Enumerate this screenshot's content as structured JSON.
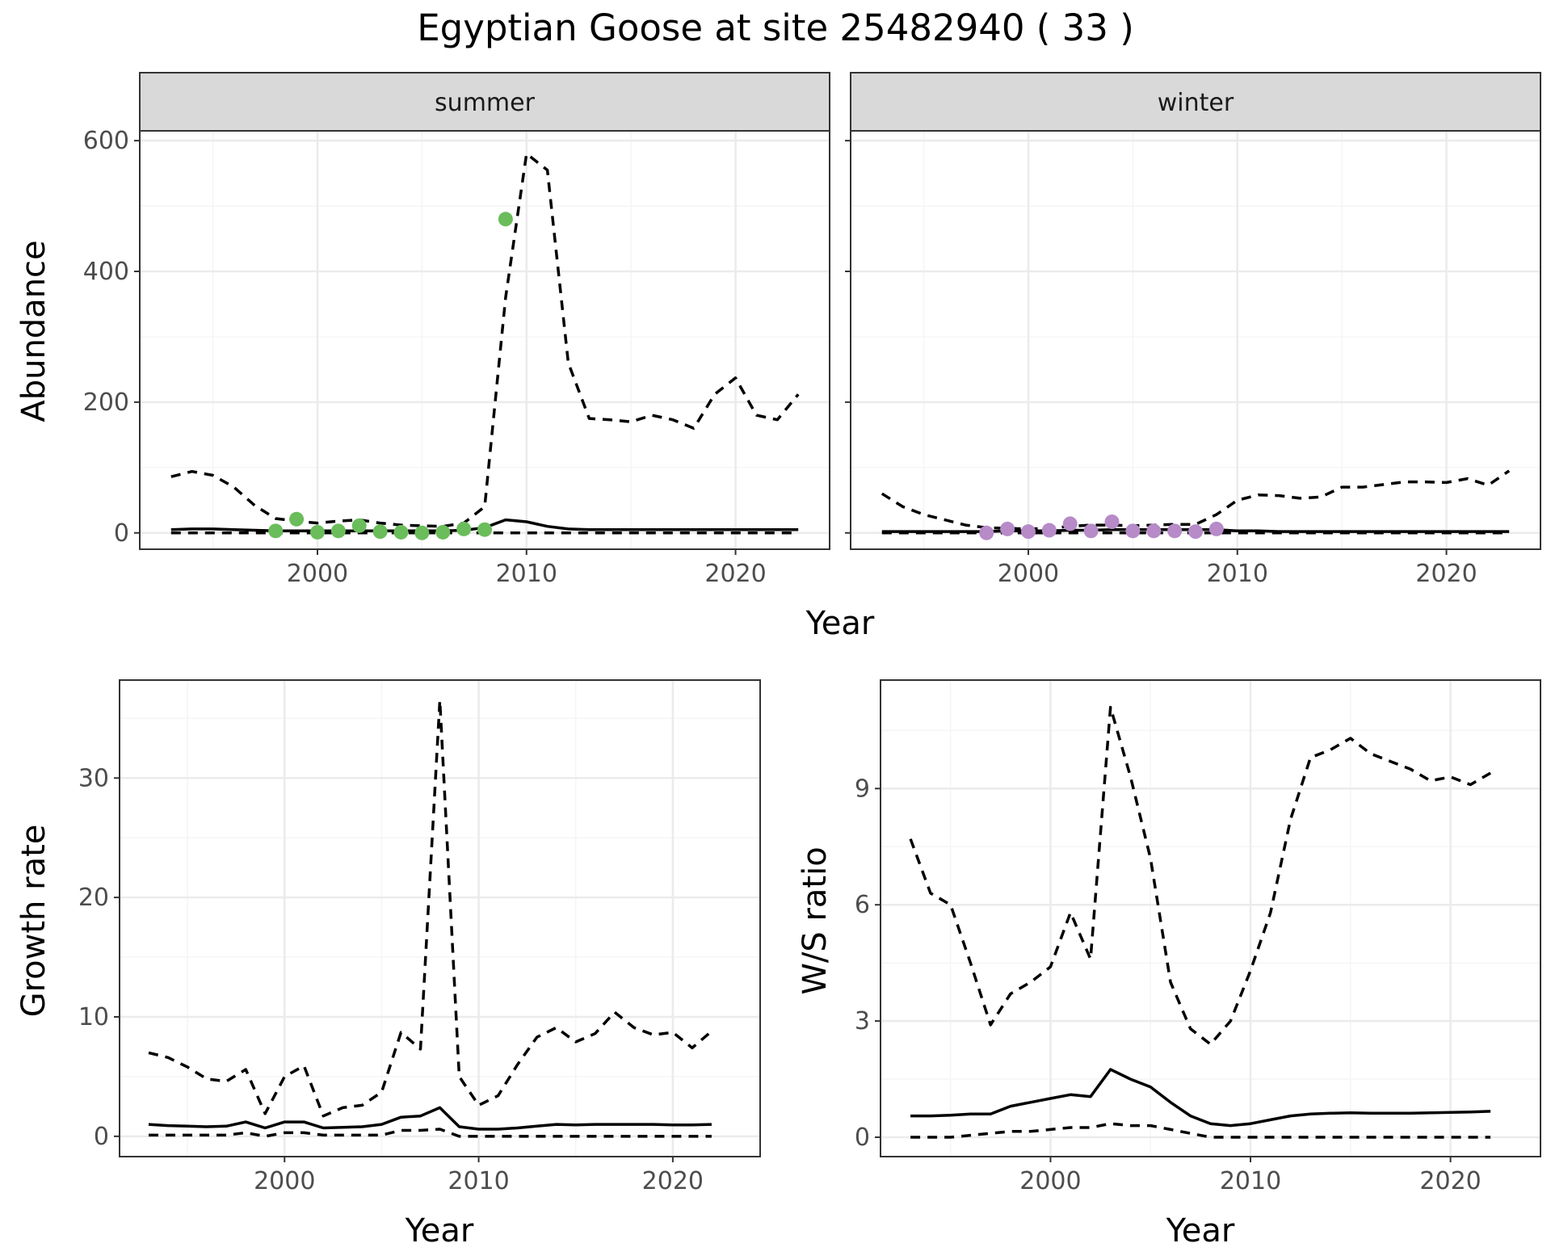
{
  "figure": {
    "title": "Egyptian Goose at site 25482940 ( 33 )",
    "colors": {
      "summer_points": "#6abd5a",
      "winter_points": "#b78ac8",
      "line": "#000000",
      "grid_major": "#ebebeb",
      "grid_minor": "#f5f5f5",
      "strip_fill": "#d9d9d9"
    }
  },
  "chart_data": [
    {
      "id": "abundance",
      "type": "line",
      "facets": [
        "summer",
        "winter"
      ],
      "xlabel": "Year",
      "ylabel": "Abundance",
      "xlim": [
        1991.5,
        2024.5
      ],
      "ylim": [
        -25,
        615
      ],
      "xticks": [
        2000,
        2010,
        2020
      ],
      "yticks": [
        0,
        200,
        400,
        600
      ],
      "grid": true,
      "panels": [
        {
          "facet": "summer",
          "series": [
            {
              "style": "dashed",
              "x": [
                1993,
                1994,
                1995,
                1996,
                1997,
                1998,
                1999,
                2000,
                2001,
                2002,
                2003,
                2004,
                2005,
                2006,
                2007,
                2008,
                2009,
                2010,
                2011,
                2012,
                2013,
                2014,
                2015,
                2016,
                2017,
                2018,
                2019,
                2020,
                2021,
                2022,
                2023
              ],
              "values": [
                86,
                94,
                88,
                70,
                42,
                22,
                18,
                15,
                18,
                20,
                15,
                12,
                11,
                10,
                15,
                40,
                360,
                580,
                555,
                260,
                175,
                173,
                170,
                180,
                173,
                160,
                212,
                237,
                180,
                173,
                212
              ]
            },
            {
              "style": "solid",
              "x": [
                1993,
                1994,
                1995,
                1996,
                1997,
                1998,
                1999,
                2000,
                2001,
                2002,
                2003,
                2004,
                2005,
                2006,
                2007,
                2008,
                2009,
                2010,
                2011,
                2012,
                2013,
                2014,
                2015,
                2016,
                2017,
                2018,
                2019,
                2020,
                2021,
                2022,
                2023
              ],
              "values": [
                5,
                6,
                6,
                5,
                4,
                3,
                3,
                3,
                3,
                3,
                3,
                3,
                3,
                3,
                4,
                8,
                20,
                17,
                10,
                6,
                5,
                5,
                5,
                5,
                5,
                5,
                5,
                5,
                5,
                5,
                5
              ]
            },
            {
              "style": "dashed",
              "x": [
                1993,
                1994,
                1995,
                1996,
                1997,
                1998,
                1999,
                2000,
                2001,
                2002,
                2003,
                2004,
                2005,
                2006,
                2007,
                2008,
                2009,
                2010,
                2011,
                2012,
                2013,
                2014,
                2015,
                2016,
                2017,
                2018,
                2019,
                2020,
                2021,
                2022,
                2023
              ],
              "values": [
                0,
                0,
                0,
                0,
                0,
                0,
                0,
                0,
                0,
                0,
                0,
                0,
                0,
                0,
                0,
                0,
                0,
                0,
                0,
                0,
                0,
                0,
                0,
                0,
                0,
                0,
                0,
                0,
                0,
                0,
                0
              ]
            }
          ],
          "points": {
            "x": [
              1998,
              1999,
              2000,
              2001,
              2002,
              2003,
              2004,
              2005,
              2006,
              2007,
              2008,
              2009
            ],
            "values": [
              3,
              21,
              1,
              3,
              11,
              2,
              1,
              0,
              1,
              6,
              5,
              480
            ]
          }
        },
        {
          "facet": "winter",
          "series": [
            {
              "style": "dashed",
              "x": [
                1993,
                1994,
                1995,
                1996,
                1997,
                1998,
                1999,
                2000,
                2001,
                2002,
                2003,
                2004,
                2005,
                2006,
                2007,
                2008,
                2009,
                2010,
                2011,
                2012,
                2013,
                2014,
                2015,
                2016,
                2017,
                2018,
                2019,
                2020,
                2021,
                2022,
                2023
              ],
              "values": [
                60,
                40,
                28,
                20,
                12,
                8,
                7,
                6,
                7,
                10,
                12,
                12,
                11,
                12,
                13,
                13,
                28,
                50,
                58,
                57,
                53,
                55,
                70,
                70,
                74,
                78,
                78,
                77,
                83,
                73,
                95
              ]
            },
            {
              "style": "solid",
              "x": [
                1993,
                1994,
                1995,
                1996,
                1997,
                1998,
                1999,
                2000,
                2001,
                2002,
                2003,
                2004,
                2005,
                2006,
                2007,
                2008,
                2009,
                2010,
                2011,
                2012,
                2013,
                2014,
                2015,
                2016,
                2017,
                2018,
                2019,
                2020,
                2021,
                2022,
                2023
              ],
              "values": [
                2,
                2,
                2,
                2,
                2,
                2,
                3,
                3,
                3,
                4,
                4,
                5,
                5,
                5,
                5,
                5,
                5,
                3,
                3,
                2,
                2,
                2,
                2,
                2,
                2,
                2,
                2,
                2,
                2,
                2,
                2
              ]
            },
            {
              "style": "dashed",
              "x": [
                1993,
                1994,
                1995,
                1996,
                1997,
                1998,
                1999,
                2000,
                2001,
                2002,
                2003,
                2004,
                2005,
                2006,
                2007,
                2008,
                2009,
                2010,
                2011,
                2012,
                2013,
                2014,
                2015,
                2016,
                2017,
                2018,
                2019,
                2020,
                2021,
                2022,
                2023
              ],
              "values": [
                0,
                0,
                0,
                0,
                0,
                0,
                0,
                0,
                0,
                0,
                0,
                0,
                0,
                0,
                0,
                0,
                0,
                0,
                0,
                0,
                0,
                0,
                0,
                0,
                0,
                0,
                0,
                0,
                0,
                0,
                0
              ]
            }
          ],
          "points": {
            "x": [
              1998,
              1999,
              2000,
              2001,
              2002,
              2003,
              2004,
              2005,
              2006,
              2007,
              2008,
              2009
            ],
            "values": [
              0,
              6,
              2,
              4,
              14,
              3,
              17,
              3,
              3,
              3,
              2,
              6
            ]
          }
        }
      ]
    },
    {
      "id": "growth",
      "type": "line",
      "xlabel": "Year",
      "ylabel": "Growth rate",
      "xlim": [
        1991.5,
        2024.5
      ],
      "ylim": [
        -1.7,
        38.2
      ],
      "xticks": [
        2000,
        2010,
        2020
      ],
      "yticks": [
        0,
        10,
        20,
        30
      ],
      "grid": true,
      "series": [
        {
          "style": "dashed",
          "x": [
            1993,
            1994,
            1995,
            1996,
            1997,
            1998,
            1999,
            2000,
            2001,
            2002,
            2003,
            2004,
            2005,
            2006,
            2007,
            2008,
            2009,
            2010,
            2011,
            2012,
            2013,
            2014,
            2015,
            2016,
            2017,
            2018,
            2019,
            2020,
            2021,
            2022
          ],
          "values": [
            7.0,
            6.6,
            5.8,
            4.8,
            4.6,
            5.6,
            1.9,
            5.0,
            5.9,
            1.7,
            2.4,
            2.6,
            3.7,
            8.7,
            7.3,
            36.5,
            5.0,
            2.6,
            3.4,
            6.0,
            8.3,
            9.1,
            7.9,
            8.6,
            10.4,
            9.1,
            8.5,
            8.7,
            7.4,
            8.8
          ]
        },
        {
          "style": "solid",
          "x": [
            1993,
            1994,
            1995,
            1996,
            1997,
            1998,
            1999,
            2000,
            2001,
            2002,
            2003,
            2004,
            2005,
            2006,
            2007,
            2008,
            2009,
            2010,
            2011,
            2012,
            2013,
            2014,
            2015,
            2016,
            2017,
            2018,
            2019,
            2020,
            2021,
            2022
          ],
          "values": [
            1.0,
            0.9,
            0.85,
            0.8,
            0.85,
            1.2,
            0.7,
            1.2,
            1.2,
            0.7,
            0.75,
            0.8,
            1.0,
            1.6,
            1.7,
            2.4,
            0.8,
            0.6,
            0.6,
            0.7,
            0.85,
            1.0,
            0.95,
            1.0,
            1.0,
            1.0,
            1.0,
            0.95,
            0.95,
            1.0
          ]
        },
        {
          "style": "dashed",
          "x": [
            1993,
            1994,
            1995,
            1996,
            1997,
            1998,
            1999,
            2000,
            2001,
            2002,
            2003,
            2004,
            2005,
            2006,
            2007,
            2008,
            2009,
            2010,
            2011,
            2012,
            2013,
            2014,
            2015,
            2016,
            2017,
            2018,
            2019,
            2020,
            2021,
            2022
          ],
          "values": [
            0.1,
            0.1,
            0.1,
            0.1,
            0.1,
            0.3,
            0.0,
            0.3,
            0.3,
            0.1,
            0.1,
            0.1,
            0.1,
            0.5,
            0.5,
            0.6,
            0.0,
            0.0,
            0.0,
            0.0,
            0.0,
            0.0,
            0.0,
            0.0,
            0.0,
            0.0,
            0.0,
            0.0,
            0.0,
            0.0
          ]
        }
      ]
    },
    {
      "id": "ratio",
      "type": "line",
      "xlabel": "Year",
      "ylabel": "W/S ratio",
      "xlim": [
        1991.5,
        2024.5
      ],
      "ylim": [
        -0.5,
        11.8
      ],
      "xticks": [
        2000,
        2010,
        2020
      ],
      "yticks": [
        0,
        3,
        6,
        9
      ],
      "grid": true,
      "series": [
        {
          "style": "dashed",
          "x": [
            1993,
            1994,
            1995,
            1996,
            1997,
            1998,
            1999,
            2000,
            2001,
            2002,
            2003,
            2004,
            2005,
            2006,
            2007,
            2008,
            2009,
            2010,
            2011,
            2012,
            2013,
            2014,
            2015,
            2016,
            2017,
            2018,
            2019,
            2020,
            2021,
            2022
          ],
          "values": [
            7.7,
            6.3,
            6.0,
            4.5,
            2.9,
            3.7,
            4.0,
            4.4,
            5.8,
            4.6,
            11.1,
            9.3,
            7.2,
            4.0,
            2.8,
            2.4,
            3.0,
            4.3,
            5.8,
            8.2,
            9.8,
            10.0,
            10.3,
            9.9,
            9.7,
            9.5,
            9.2,
            9.3,
            9.1,
            9.4
          ]
        },
        {
          "style": "solid",
          "x": [
            1993,
            1994,
            1995,
            1996,
            1997,
            1998,
            1999,
            2000,
            2001,
            2002,
            2003,
            2004,
            2005,
            2006,
            2007,
            2008,
            2009,
            2010,
            2011,
            2012,
            2013,
            2014,
            2015,
            2016,
            2017,
            2018,
            2019,
            2020,
            2021,
            2022
          ],
          "values": [
            0.55,
            0.55,
            0.57,
            0.6,
            0.6,
            0.8,
            0.9,
            1.0,
            1.1,
            1.05,
            1.75,
            1.5,
            1.3,
            0.9,
            0.55,
            0.35,
            0.3,
            0.35,
            0.45,
            0.55,
            0.6,
            0.62,
            0.63,
            0.62,
            0.62,
            0.62,
            0.63,
            0.64,
            0.65,
            0.67
          ]
        },
        {
          "style": "dashed",
          "x": [
            1993,
            1994,
            1995,
            1996,
            1997,
            1998,
            1999,
            2000,
            2001,
            2002,
            2003,
            2004,
            2005,
            2006,
            2007,
            2008,
            2009,
            2010,
            2011,
            2012,
            2013,
            2014,
            2015,
            2016,
            2017,
            2018,
            2019,
            2020,
            2021,
            2022
          ],
          "values": [
            0.0,
            0.0,
            0.0,
            0.05,
            0.1,
            0.15,
            0.15,
            0.2,
            0.25,
            0.25,
            0.35,
            0.3,
            0.3,
            0.2,
            0.1,
            0.0,
            0.0,
            0.0,
            0.0,
            0.0,
            0.0,
            0.0,
            0.0,
            0.0,
            0.0,
            0.0,
            0.0,
            0.0,
            0.0,
            0.0
          ]
        }
      ]
    }
  ]
}
